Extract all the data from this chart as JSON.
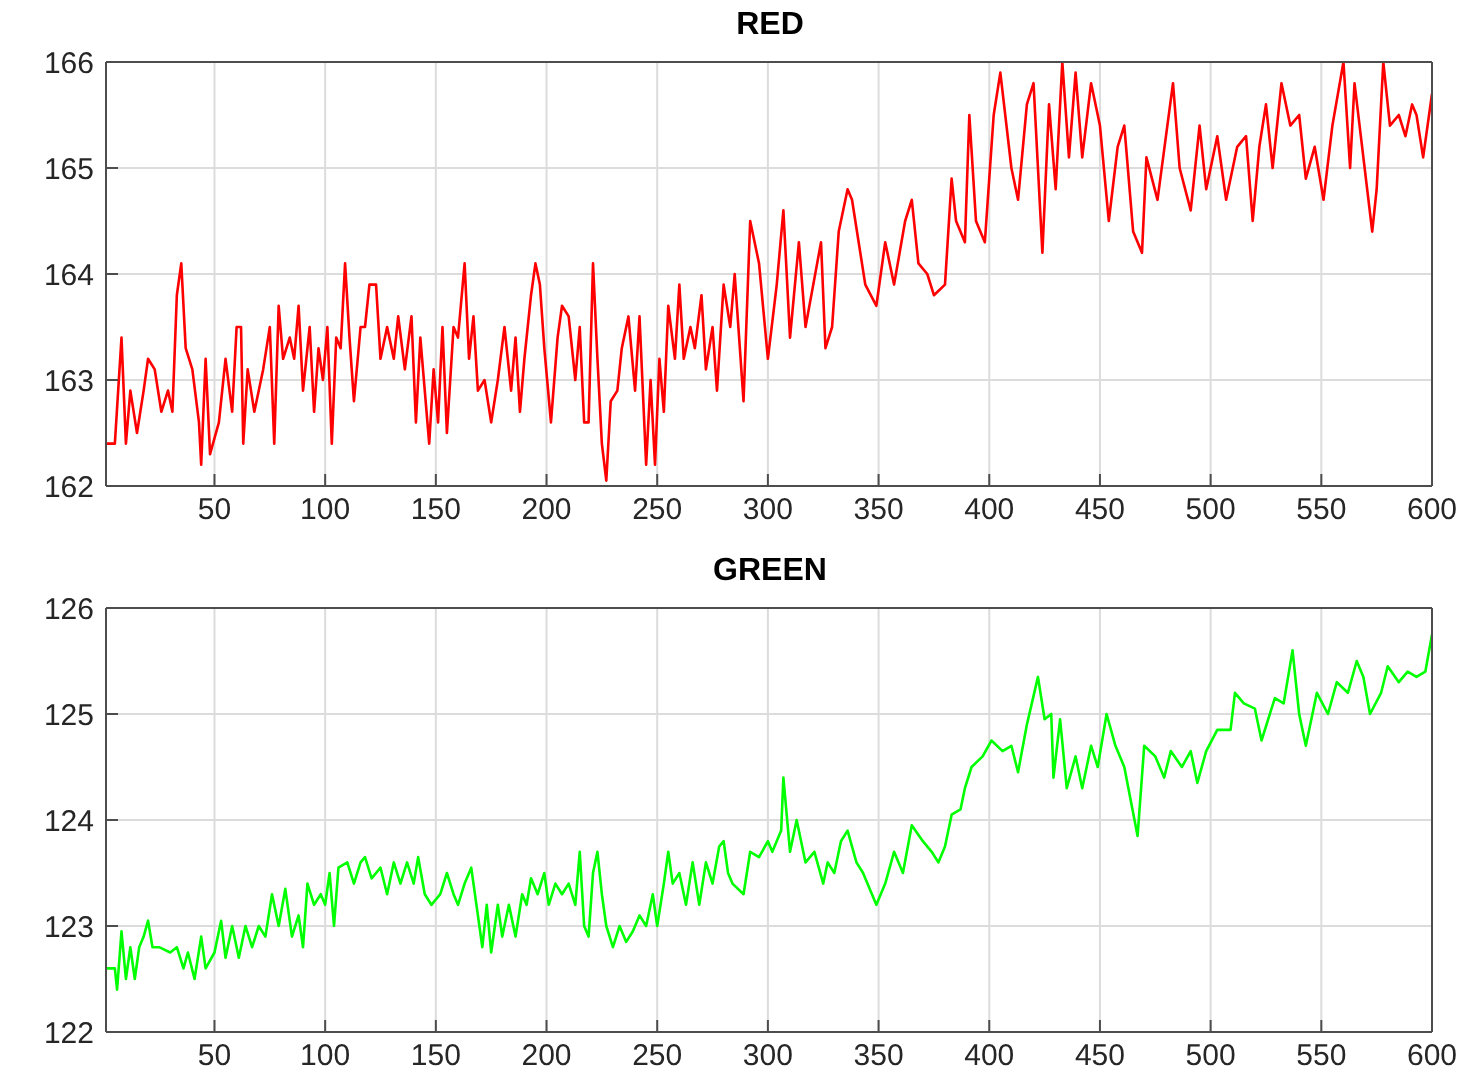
{
  "chart_data": [
    {
      "type": "line",
      "title": "RED",
      "xlim": [
        1,
        600
      ],
      "xticks": [
        50,
        100,
        150,
        200,
        250,
        300,
        350,
        400,
        450,
        500,
        550,
        600
      ],
      "ylim": [
        162,
        166
      ],
      "yticks": [
        162,
        163,
        164,
        165,
        166
      ],
      "grid": true,
      "x": [
        1,
        5,
        8,
        10,
        12,
        15,
        18,
        20,
        23,
        26,
        29,
        31,
        33,
        35,
        37,
        40,
        43,
        44,
        46,
        48,
        52,
        55,
        58,
        60,
        62,
        63,
        65,
        68,
        72,
        75,
        77,
        79,
        81,
        84,
        86,
        88,
        90,
        93,
        95,
        97,
        99,
        101,
        103,
        105,
        107,
        109,
        111,
        113,
        116,
        118,
        120,
        123,
        125,
        128,
        131,
        133,
        136,
        139,
        141,
        143,
        145,
        147,
        149,
        151,
        153,
        155,
        158,
        160,
        163,
        165,
        167,
        169,
        172,
        175,
        178,
        181,
        184,
        186,
        188,
        190,
        193,
        195,
        197,
        199,
        202,
        205,
        207,
        210,
        213,
        215,
        217,
        219,
        221,
        223,
        225,
        227,
        229,
        232,
        234,
        237,
        240,
        242,
        245,
        247,
        249,
        251,
        253,
        255,
        258,
        260,
        262,
        265,
        267,
        270,
        272,
        275,
        277,
        280,
        283,
        285,
        289,
        292,
        296,
        300,
        304,
        307,
        310,
        314,
        317,
        324,
        326,
        329,
        332,
        336,
        338,
        341,
        344,
        349,
        353,
        357,
        362,
        365,
        368,
        372,
        375,
        380,
        383,
        385,
        389,
        391,
        394,
        398,
        402,
        405,
        410,
        413,
        417,
        420,
        424,
        427,
        430,
        433,
        436,
        439,
        442,
        446,
        450,
        454,
        458,
        461,
        465,
        469,
        471,
        476,
        483,
        486,
        491,
        495,
        498,
        503,
        507,
        512,
        516,
        519,
        522,
        525,
        528,
        532,
        536,
        540,
        543,
        547,
        551,
        555,
        560,
        563,
        565,
        569,
        573,
        575,
        578,
        581,
        585,
        588,
        591,
        593,
        596,
        600
      ],
      "series": [
        {
          "color": "#ff0000",
          "values": [
            162.4,
            162.4,
            163.4,
            162.4,
            162.9,
            162.5,
            162.9,
            163.2,
            163.1,
            162.7,
            162.9,
            162.7,
            163.8,
            164.1,
            163.3,
            163.1,
            162.6,
            162.2,
            163.2,
            162.3,
            162.6,
            163.2,
            162.7,
            163.5,
            163.5,
            162.4,
            163.1,
            162.7,
            163.1,
            163.5,
            162.4,
            163.7,
            163.2,
            163.4,
            163.2,
            163.7,
            162.9,
            163.5,
            162.7,
            163.3,
            163.0,
            163.5,
            162.4,
            163.4,
            163.3,
            164.1,
            163.4,
            162.8,
            163.5,
            163.5,
            163.9,
            163.9,
            163.2,
            163.5,
            163.2,
            163.6,
            163.1,
            163.6,
            162.6,
            163.4,
            162.9,
            162.4,
            163.1,
            162.6,
            163.5,
            162.5,
            163.5,
            163.4,
            164.1,
            163.2,
            163.6,
            162.9,
            163.0,
            162.6,
            163.0,
            163.5,
            162.9,
            163.4,
            162.7,
            163.2,
            163.8,
            164.1,
            163.9,
            163.3,
            162.6,
            163.4,
            163.7,
            163.6,
            163.0,
            163.5,
            162.6,
            162.6,
            164.1,
            163.2,
            162.4,
            162.05,
            162.8,
            162.9,
            163.3,
            163.6,
            162.9,
            163.6,
            162.2,
            163.0,
            162.2,
            163.2,
            162.7,
            163.7,
            163.2,
            163.9,
            163.2,
            163.5,
            163.3,
            163.8,
            163.1,
            163.5,
            162.9,
            163.9,
            163.5,
            164.0,
            162.8,
            164.5,
            164.1,
            163.2,
            163.9,
            164.6,
            163.4,
            164.3,
            163.5,
            164.3,
            163.3,
            163.5,
            164.4,
            164.8,
            164.7,
            164.3,
            163.9,
            163.7,
            164.3,
            163.9,
            164.5,
            164.7,
            164.1,
            164.0,
            163.8,
            163.9,
            164.9,
            164.5,
            164.3,
            165.5,
            164.5,
            164.3,
            165.5,
            165.9,
            165.0,
            164.7,
            165.6,
            165.8,
            164.2,
            165.6,
            164.8,
            166.0,
            165.1,
            165.9,
            165.1,
            165.8,
            165.4,
            164.5,
            165.2,
            165.4,
            164.4,
            164.2,
            165.1,
            164.7,
            165.8,
            165.0,
            164.6,
            165.4,
            164.8,
            165.3,
            164.7,
            165.2,
            165.3,
            164.5,
            165.2,
            165.6,
            165.0,
            165.8,
            165.4,
            165.5,
            164.9,
            165.2,
            164.7,
            165.4,
            166.0,
            165.0,
            165.8,
            165.1,
            164.4,
            164.8,
            166.0,
            165.4,
            165.5,
            165.3,
            165.6,
            165.5,
            165.1,
            165.7
          ]
        }
      ]
    },
    {
      "type": "line",
      "title": "GREEN",
      "xlim": [
        1,
        600
      ],
      "xticks": [
        50,
        100,
        150,
        200,
        250,
        300,
        350,
        400,
        450,
        500,
        550,
        600
      ],
      "ylim": [
        122,
        126
      ],
      "yticks": [
        122,
        123,
        124,
        125,
        126
      ],
      "grid": true,
      "x": [
        1,
        5,
        6,
        8,
        10,
        12,
        14,
        16,
        18,
        20,
        22,
        25,
        30,
        33,
        36,
        38,
        41,
        44,
        46,
        50,
        53,
        55,
        58,
        61,
        64,
        67,
        70,
        73,
        76,
        79,
        82,
        85,
        88,
        90,
        92,
        95,
        98,
        100,
        102,
        104,
        106,
        110,
        113,
        116,
        118,
        121,
        125,
        128,
        131,
        134,
        137,
        140,
        142,
        145,
        148,
        152,
        155,
        158,
        160,
        163,
        166,
        169,
        171,
        173,
        175,
        178,
        180,
        183,
        186,
        189,
        191,
        193,
        196,
        199,
        201,
        204,
        207,
        210,
        213,
        215,
        217,
        219,
        221,
        223,
        225,
        227,
        230,
        233,
        236,
        239,
        242,
        245,
        248,
        250,
        253,
        255,
        257,
        260,
        263,
        266,
        269,
        272,
        275,
        278,
        280,
        282,
        284,
        289,
        292,
        296,
        300,
        302,
        306,
        307,
        310,
        313,
        317,
        321,
        325,
        327,
        330,
        333,
        336,
        340,
        343,
        347,
        349,
        353,
        357,
        361,
        365,
        370,
        374,
        377,
        380,
        383,
        387,
        389,
        392,
        397,
        401,
        406,
        410,
        413,
        417,
        422,
        425,
        428,
        429,
        432,
        435,
        439,
        442,
        446,
        449,
        453,
        457,
        461,
        467,
        470,
        475,
        479,
        482,
        487,
        491,
        494,
        498,
        503,
        509,
        511,
        515,
        520,
        523,
        529,
        533,
        537,
        540,
        543,
        548,
        553,
        557,
        562,
        566,
        569,
        572,
        577,
        580,
        585,
        589,
        593,
        597,
        600
      ],
      "series": [
        {
          "color": "#00ff00",
          "values": [
            122.6,
            122.6,
            122.4,
            122.95,
            122.5,
            122.8,
            122.5,
            122.8,
            122.9,
            123.05,
            122.8,
            122.8,
            122.75,
            122.8,
            122.6,
            122.75,
            122.5,
            122.9,
            122.6,
            122.75,
            123.05,
            122.7,
            123.0,
            122.7,
            123.0,
            122.8,
            123.0,
            122.9,
            123.3,
            123.0,
            123.35,
            122.9,
            123.1,
            122.8,
            123.4,
            123.2,
            123.3,
            123.2,
            123.5,
            123.0,
            123.55,
            123.6,
            123.4,
            123.6,
            123.65,
            123.45,
            123.55,
            123.3,
            123.6,
            123.4,
            123.6,
            123.4,
            123.65,
            123.3,
            123.2,
            123.3,
            123.5,
            123.3,
            123.2,
            123.4,
            123.55,
            123.1,
            122.8,
            123.2,
            122.75,
            123.2,
            122.9,
            123.2,
            122.9,
            123.3,
            123.2,
            123.45,
            123.3,
            123.5,
            123.2,
            123.4,
            123.3,
            123.4,
            123.2,
            123.7,
            123.0,
            122.9,
            123.5,
            123.7,
            123.3,
            123.0,
            122.8,
            123.0,
            122.85,
            122.95,
            123.1,
            123.0,
            123.3,
            123.0,
            123.4,
            123.7,
            123.4,
            123.5,
            123.2,
            123.6,
            123.2,
            123.6,
            123.4,
            123.75,
            123.8,
            123.5,
            123.4,
            123.3,
            123.7,
            123.65,
            123.8,
            123.7,
            123.9,
            124.4,
            123.7,
            124.0,
            123.6,
            123.7,
            123.4,
            123.6,
            123.5,
            123.8,
            123.9,
            123.6,
            123.5,
            123.3,
            123.2,
            123.4,
            123.7,
            123.5,
            123.95,
            123.8,
            123.7,
            123.6,
            123.75,
            124.05,
            124.1,
            124.3,
            124.5,
            124.6,
            124.75,
            124.65,
            124.7,
            124.45,
            124.9,
            125.35,
            124.95,
            125.0,
            124.4,
            124.95,
            124.3,
            124.6,
            124.3,
            124.7,
            124.5,
            125.0,
            124.7,
            124.5,
            123.85,
            124.7,
            124.6,
            124.4,
            124.65,
            124.5,
            124.65,
            124.35,
            124.65,
            124.85,
            124.85,
            125.2,
            125.1,
            125.05,
            124.75,
            125.15,
            125.1,
            125.6,
            125.0,
            124.7,
            125.2,
            125.0,
            125.3,
            125.2,
            125.5,
            125.35,
            125.0,
            125.2,
            125.45,
            125.3,
            125.4,
            125.35,
            125.4,
            125.75
          ]
        }
      ]
    }
  ]
}
